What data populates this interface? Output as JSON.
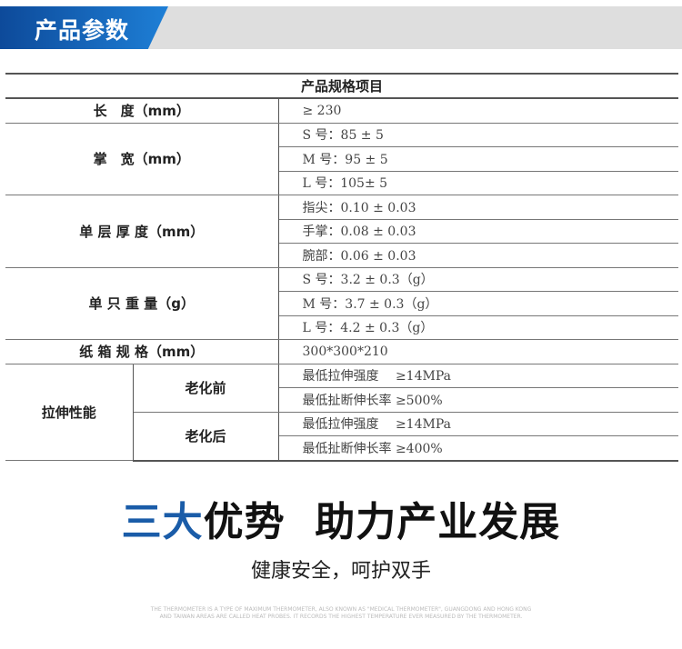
{
  "banner": {
    "title": "产品参数",
    "color": "#1565c0"
  },
  "table": {
    "header": "产品规格项目",
    "length": {
      "label": "长　度（mm）",
      "value": "≥ 230"
    },
    "width": {
      "label": "掌　宽（mm）",
      "values": [
        "S 号：85 ± 5",
        "M 号：95 ± 5",
        "L 号：105± 5"
      ]
    },
    "thickness": {
      "label": "单 层 厚 度（mm）",
      "values": [
        "指尖：0.10 ± 0.03",
        "手掌：0.08 ± 0.03",
        "腕部：0.06 ± 0.03"
      ]
    },
    "weight": {
      "label": "单 只 重 量（g）",
      "values": [
        "S 号：3.2 ± 0.3（g）",
        "M 号：3.7 ± 0.3（g）",
        "L 号：4.2 ± 0.3（g）"
      ]
    },
    "carton": {
      "label": "纸 箱 规 格（mm）",
      "value": "300*300*210"
    },
    "tensile": {
      "label": "拉伸性能",
      "before": {
        "label": "老化前",
        "values": [
          "最低拉伸强度　 ≥14MPa",
          "最低扯断伸长率 ≥500%"
        ]
      },
      "after": {
        "label": "老化后",
        "values": [
          "最低拉伸强度　 ≥14MPa",
          "最低扯断伸长率 ≥400%"
        ]
      }
    }
  },
  "slogan": {
    "highlight": "三大",
    "rest": "优势  助力产业发展",
    "sub": "健康安全，呵护双手",
    "highlight_color": "#1a5ca8"
  },
  "fineprint": "THE THERMOMETER IS A TYPE OF MAXIMUM THERMOMETER, ALSO KNOWN AS \"MEDICAL THERMOMETER\", GUANGDONG AND HONG KONG AND TAIWAN AREAS ARE CALLED HEAT PROBES. IT RECORDS THE HIGHEST TEMPERATURE EVER MEASURED BY THE THERMOMETER."
}
